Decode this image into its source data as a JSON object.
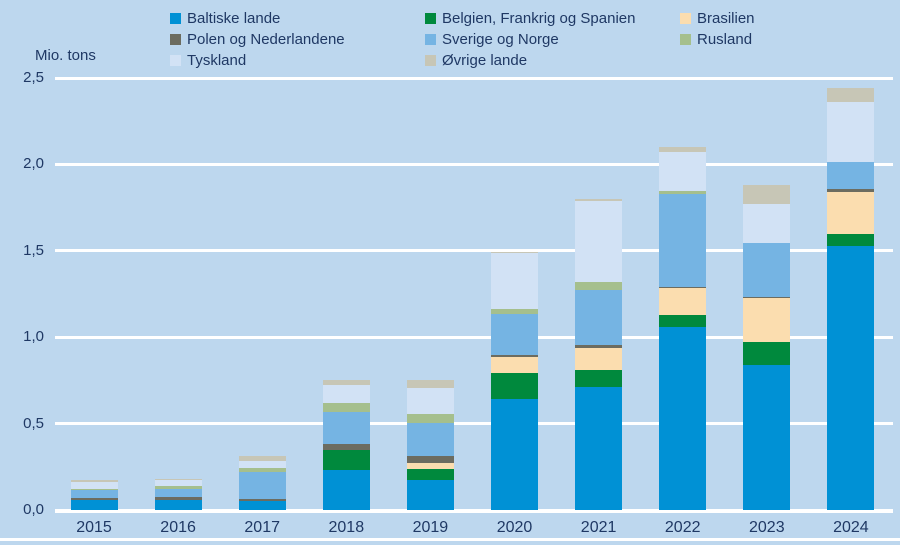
{
  "colors": {
    "background": "#BDD7EE",
    "grid": "#FFFFFF",
    "text": "#1F3864"
  },
  "chart_data": {
    "type": "bar",
    "stacked": true,
    "ylabel": "Mio. tons",
    "categories": [
      "2015",
      "2016",
      "2017",
      "2018",
      "2019",
      "2020",
      "2021",
      "2022",
      "2023",
      "2024"
    ],
    "series": [
      {
        "name": "Baltiske lande",
        "color": "#0091D5",
        "values": [
          0.06,
          0.06,
          0.05,
          0.23,
          0.175,
          0.645,
          0.71,
          1.06,
          0.84,
          1.53
        ]
      },
      {
        "name": "Belgien, Frankrig og Spanien",
        "color": "#00893D",
        "values": [
          0,
          0,
          0,
          0.12,
          0.06,
          0.15,
          0.1,
          0.07,
          0.135,
          0.07
        ]
      },
      {
        "name": "Brasilien",
        "color": "#FBDDAF",
        "values": [
          0,
          0,
          0,
          0,
          0.04,
          0.09,
          0.13,
          0.155,
          0.25,
          0.24
        ]
      },
      {
        "name": "Polen og Nederlandene",
        "color": "#6C6C60",
        "values": [
          0.01,
          0.015,
          0.015,
          0.03,
          0.04,
          0.015,
          0.015,
          0.005,
          0.01,
          0.02
        ]
      },
      {
        "name": "Sverige og Norge",
        "color": "#75B4E3",
        "values": [
          0.045,
          0.045,
          0.155,
          0.19,
          0.19,
          0.235,
          0.32,
          0.54,
          0.31,
          0.155
        ]
      },
      {
        "name": "Rusland",
        "color": "#A5BF8D",
        "values": [
          0.005,
          0.02,
          0.025,
          0.05,
          0.05,
          0.03,
          0.045,
          0.015,
          0,
          0
        ]
      },
      {
        "name": "Tyskland",
        "color": "#D2E2F5",
        "values": [
          0.045,
          0.035,
          0.04,
          0.105,
          0.15,
          0.32,
          0.47,
          0.225,
          0.225,
          0.345
        ]
      },
      {
        "name": "Øvrige lande",
        "color": "#C7C6B6",
        "values": [
          0.01,
          0.005,
          0.03,
          0.03,
          0.045,
          0.01,
          0.01,
          0.03,
          0.11,
          0.08
        ]
      }
    ],
    "totals": [
      0.175,
      0.18,
      0.315,
      0.755,
      0.75,
      1.495,
      1.8,
      2.1,
      1.88,
      2.44
    ],
    "y_ticks": [
      {
        "label": "2,5",
        "value": 2.5
      },
      {
        "label": "2,0",
        "value": 2.0
      },
      {
        "label": "1,5",
        "value": 1.5
      },
      {
        "label": "1,0",
        "value": 1.0
      },
      {
        "label": "0,5",
        "value": 0.5
      },
      {
        "label": "0,0",
        "value": 0.0
      }
    ],
    "ylim": [
      0,
      2.5
    ],
    "grid": "horizontal-white",
    "legend_position": "top",
    "legend_columns": {
      "lefts": [
        170,
        425,
        680
      ],
      "series_indexes": [
        [
          0,
          3,
          6
        ],
        [
          1,
          4,
          7
        ],
        [
          2,
          5
        ]
      ]
    }
  },
  "layout_values": {
    "note_visible_only": true
  }
}
